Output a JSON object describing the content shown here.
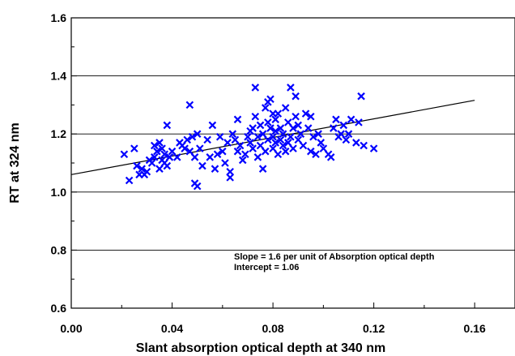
{
  "chart_data": {
    "type": "scatter",
    "title": "",
    "xlabel": "Slant absorption optical depth at 340 nm",
    "ylabel": "RT at 324 nm",
    "xlim": [
      0.0,
      0.176
    ],
    "ylim": [
      0.6,
      1.6
    ],
    "x_ticks": [
      "0.00",
      "0.04",
      "0.08",
      "0.12",
      "0.16"
    ],
    "y_ticks": [
      "0.6",
      "0.8",
      "1.0",
      "1.2",
      "1.4",
      "1.6"
    ],
    "grid": "horizontal",
    "marker": "x",
    "marker_color": "#0000ff",
    "fit_line": {
      "slope": 1.6,
      "intercept": 1.06,
      "x_range": [
        0.0,
        0.16
      ]
    },
    "annotations": [
      "Slope = 1.6 per unit of Absorption optical depth",
      "Intercept = 1.06"
    ],
    "points": [
      [
        0.021,
        1.13
      ],
      [
        0.023,
        1.04
      ],
      [
        0.025,
        1.15
      ],
      [
        0.026,
        1.09
      ],
      [
        0.027,
        1.06
      ],
      [
        0.028,
        1.08
      ],
      [
        0.029,
        1.06
      ],
      [
        0.03,
        1.07
      ],
      [
        0.031,
        1.11
      ],
      [
        0.032,
        1.1
      ],
      [
        0.033,
        1.12
      ],
      [
        0.033,
        1.16
      ],
      [
        0.034,
        1.14
      ],
      [
        0.035,
        1.17
      ],
      [
        0.035,
        1.08
      ],
      [
        0.036,
        1.15
      ],
      [
        0.036,
        1.11
      ],
      [
        0.037,
        1.13
      ],
      [
        0.037,
        1.1
      ],
      [
        0.038,
        1.09
      ],
      [
        0.038,
        1.23
      ],
      [
        0.039,
        1.12
      ],
      [
        0.04,
        1.14
      ],
      [
        0.042,
        1.12
      ],
      [
        0.043,
        1.17
      ],
      [
        0.044,
        1.16
      ],
      [
        0.045,
        1.15
      ],
      [
        0.046,
        1.18
      ],
      [
        0.047,
        1.3
      ],
      [
        0.047,
        1.14
      ],
      [
        0.048,
        1.19
      ],
      [
        0.049,
        1.12
      ],
      [
        0.049,
        1.03
      ],
      [
        0.05,
        1.02
      ],
      [
        0.05,
        1.2
      ],
      [
        0.051,
        1.15
      ],
      [
        0.052,
        1.09
      ],
      [
        0.054,
        1.18
      ],
      [
        0.055,
        1.12
      ],
      [
        0.056,
        1.23
      ],
      [
        0.057,
        1.08
      ],
      [
        0.058,
        1.13
      ],
      [
        0.059,
        1.19
      ],
      [
        0.06,
        1.14
      ],
      [
        0.061,
        1.1
      ],
      [
        0.062,
        1.17
      ],
      [
        0.063,
        1.05
      ],
      [
        0.063,
        1.07
      ],
      [
        0.064,
        1.2
      ],
      [
        0.065,
        1.18
      ],
      [
        0.066,
        1.25
      ],
      [
        0.066,
        1.14
      ],
      [
        0.067,
        1.16
      ],
      [
        0.068,
        1.11
      ],
      [
        0.069,
        1.13
      ],
      [
        0.07,
        1.19
      ],
      [
        0.071,
        1.21
      ],
      [
        0.071,
        1.17
      ],
      [
        0.072,
        1.22
      ],
      [
        0.072,
        1.15
      ],
      [
        0.073,
        1.26
      ],
      [
        0.073,
        1.36
      ],
      [
        0.074,
        1.19
      ],
      [
        0.074,
        1.12
      ],
      [
        0.075,
        1.16
      ],
      [
        0.075,
        1.23
      ],
      [
        0.076,
        1.08
      ],
      [
        0.076,
        1.2
      ],
      [
        0.077,
        1.29
      ],
      [
        0.077,
        1.14
      ],
      [
        0.078,
        1.31
      ],
      [
        0.078,
        1.24
      ],
      [
        0.078,
        1.18
      ],
      [
        0.079,
        1.32
      ],
      [
        0.079,
        1.22
      ],
      [
        0.08,
        1.27
      ],
      [
        0.08,
        1.19
      ],
      [
        0.08,
        1.15
      ],
      [
        0.081,
        1.21
      ],
      [
        0.081,
        1.17
      ],
      [
        0.081,
        1.25
      ],
      [
        0.082,
        1.13
      ],
      [
        0.082,
        1.27
      ],
      [
        0.083,
        1.18
      ],
      [
        0.083,
        1.22
      ],
      [
        0.084,
        1.16
      ],
      [
        0.084,
        1.2
      ],
      [
        0.085,
        1.14
      ],
      [
        0.085,
        1.29
      ],
      [
        0.086,
        1.24
      ],
      [
        0.086,
        1.17
      ],
      [
        0.087,
        1.36
      ],
      [
        0.087,
        1.19
      ],
      [
        0.088,
        1.22
      ],
      [
        0.088,
        1.15
      ],
      [
        0.089,
        1.33
      ],
      [
        0.089,
        1.26
      ],
      [
        0.09,
        1.23
      ],
      [
        0.09,
        1.18
      ],
      [
        0.091,
        1.2
      ],
      [
        0.092,
        1.16
      ],
      [
        0.093,
        1.27
      ],
      [
        0.094,
        1.22
      ],
      [
        0.095,
        1.26
      ],
      [
        0.095,
        1.14
      ],
      [
        0.096,
        1.19
      ],
      [
        0.097,
        1.13
      ],
      [
        0.098,
        1.2
      ],
      [
        0.099,
        1.17
      ],
      [
        0.1,
        1.15
      ],
      [
        0.102,
        1.13
      ],
      [
        0.103,
        1.12
      ],
      [
        0.104,
        1.22
      ],
      [
        0.105,
        1.25
      ],
      [
        0.106,
        1.19
      ],
      [
        0.107,
        1.2
      ],
      [
        0.108,
        1.23
      ],
      [
        0.109,
        1.18
      ],
      [
        0.11,
        1.2
      ],
      [
        0.111,
        1.25
      ],
      [
        0.113,
        1.17
      ],
      [
        0.114,
        1.24
      ],
      [
        0.115,
        1.33
      ],
      [
        0.116,
        1.16
      ],
      [
        0.12,
        1.15
      ]
    ]
  }
}
